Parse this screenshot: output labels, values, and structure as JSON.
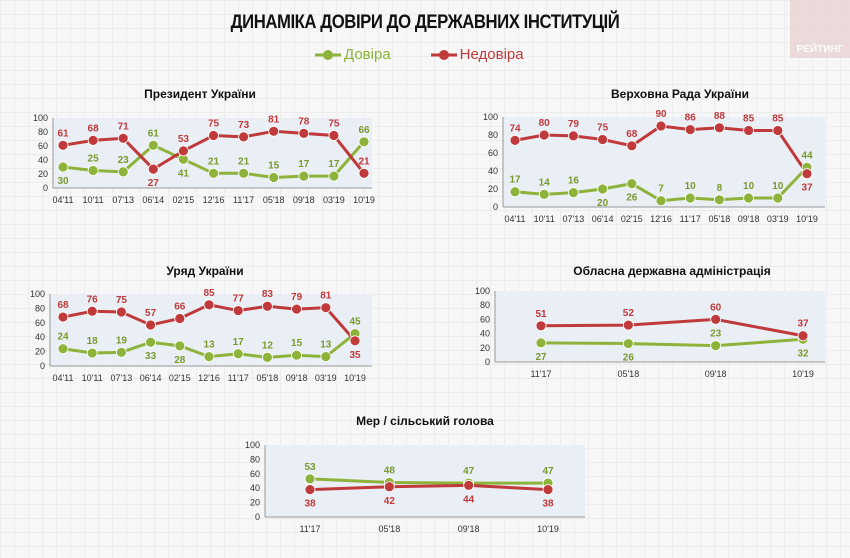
{
  "title": "ДИНАМІКА ДОВІРИ ДО ДЕРЖАВНИХ ІНСТИТУЦІЙ",
  "logo": "РЕЙТИНГ",
  "legend": {
    "trust": "Довіра",
    "distrust": "Недовіра"
  },
  "colors": {
    "trust": "#8db33a",
    "distrust": "#c0393b",
    "trust_label": "#7a9a2e",
    "distrust_label": "#c0393b"
  },
  "chart_data": [
    {
      "type": "line",
      "title": "Президент України",
      "categories": [
        "04'11",
        "10'11",
        "07'13",
        "06'14",
        "02'15",
        "12'16",
        "11'17",
        "05'18",
        "09'18",
        "03'19",
        "10'19"
      ],
      "series": [
        {
          "name": "Довіра",
          "values": [
            30,
            25,
            23,
            61,
            41,
            21,
            21,
            15,
            17,
            17,
            66
          ]
        },
        {
          "name": "Недовіра",
          "values": [
            61,
            68,
            71,
            27,
            53,
            75,
            73,
            81,
            78,
            75,
            21
          ]
        }
      ],
      "ylim": [
        0,
        100
      ],
      "yticks": [
        0,
        20,
        40,
        60,
        80,
        100
      ]
    },
    {
      "type": "line",
      "title": "Верховна Рада України",
      "categories": [
        "04'11",
        "10'11",
        "07'13",
        "06'14",
        "02'15",
        "12'16",
        "11'17",
        "05'18",
        "09'18",
        "03'19",
        "10'19"
      ],
      "series": [
        {
          "name": "Довіра",
          "values": [
            17,
            14,
            16,
            20,
            26,
            7,
            10,
            8,
            10,
            10,
            44
          ]
        },
        {
          "name": "Недовіра",
          "values": [
            74,
            80,
            79,
            75,
            68,
            90,
            86,
            88,
            85,
            85,
            37
          ]
        }
      ],
      "ylim": [
        0,
        100
      ],
      "yticks": [
        0,
        20,
        40,
        60,
        80,
        100
      ]
    },
    {
      "type": "line",
      "title": "Уряд України",
      "categories": [
        "04'11",
        "10'11",
        "07'13",
        "06'14",
        "02'15",
        "12'16",
        "11'17",
        "05'18",
        "09'18",
        "03'19",
        "10'19"
      ],
      "series": [
        {
          "name": "Довіра",
          "values": [
            24,
            18,
            19,
            33,
            28,
            13,
            17,
            12,
            15,
            13,
            45
          ]
        },
        {
          "name": "Недовіра",
          "values": [
            68,
            76,
            75,
            57,
            66,
            85,
            77,
            83,
            79,
            81,
            35
          ]
        }
      ],
      "ylim": [
        0,
        100
      ],
      "yticks": [
        0,
        20,
        40,
        60,
        80,
        100
      ]
    },
    {
      "type": "line",
      "title": "Обласна державна адміністрація",
      "categories": [
        "11'17",
        "05'18",
        "09'18",
        "10'19"
      ],
      "series": [
        {
          "name": "Довіра",
          "values": [
            27,
            26,
            23,
            32
          ]
        },
        {
          "name": "Недовіра",
          "values": [
            51,
            52,
            60,
            37
          ]
        }
      ],
      "ylim": [
        0,
        100
      ],
      "yticks": [
        0,
        20,
        40,
        60,
        80,
        100
      ]
    },
    {
      "type": "line",
      "title": "Мер / сільський голова",
      "categories": [
        "11'17",
        "05'18",
        "09'18",
        "10'19"
      ],
      "series": [
        {
          "name": "Довіра",
          "values": [
            53,
            48,
            47,
            47
          ]
        },
        {
          "name": "Недовіра",
          "values": [
            38,
            42,
            44,
            38
          ]
        }
      ],
      "ylim": [
        0,
        100
      ],
      "yticks": [
        0,
        20,
        40,
        60,
        80,
        100
      ]
    }
  ]
}
